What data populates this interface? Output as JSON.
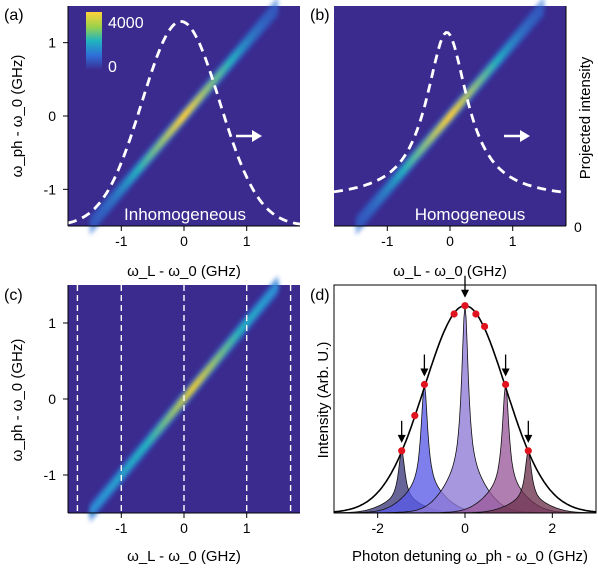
{
  "chart_data": [
    {
      "panel": "(a)",
      "type": "heatmap",
      "xlabel": "ω_L - ω_0 (GHz)",
      "ylabel": "ω_ph - ω_0 (GHz)",
      "xlim": [
        -1.85,
        1.85
      ],
      "ylim": [
        -1.5,
        1.5
      ],
      "xticks": [
        -1,
        0,
        1
      ],
      "yticks": [
        -1,
        0,
        1
      ],
      "diagonal_width_ghz": 0.13,
      "colorbar": {
        "min": 0,
        "max": 4000,
        "labels": [
          "4000",
          "0"
        ]
      },
      "annotation": "Inhomogeneous",
      "projection": {
        "style": "dashed-white",
        "center_ghz": -0.05,
        "sigma_ghz": 0.62,
        "peak_fraction": 0.93
      }
    },
    {
      "panel": "(b)",
      "type": "heatmap",
      "xlabel": "ω_L - ω_0 (GHz)",
      "ylabel_right": "Projected intensity",
      "right_tick_labels": [
        "0"
      ],
      "xlim": [
        -1.85,
        1.85
      ],
      "ylim": [
        -1.5,
        1.5
      ],
      "xticks": [
        -1,
        0,
        1
      ],
      "diagonal_width_ghz": 0.13,
      "annotation": "Homogeneous",
      "projection": {
        "style": "dashed-white",
        "center_ghz": -0.05,
        "gamma_ghz": 0.4,
        "peak_fraction": 0.88,
        "baseline_fraction": 0.12
      }
    },
    {
      "panel": "(c)",
      "type": "heatmap",
      "xlabel": "ω_L - ω_0 (GHz)",
      "ylabel": "ω_ph - ω_0 (GHz)",
      "xlim": [
        -1.85,
        1.85
      ],
      "ylim": [
        -1.5,
        1.5
      ],
      "xticks": [
        -1,
        0,
        1
      ],
      "yticks": [
        -1,
        0,
        1
      ],
      "dashed_lines_x": [
        -1.7,
        -1.0,
        0.0,
        1.0,
        1.7
      ]
    },
    {
      "panel": "(d)",
      "type": "area",
      "xlabel": "Photon detuning ω_ph - ω_0 (GHz)",
      "ylabel": "Intensity (Arb. U.)",
      "xlim": [
        -3.0,
        3.0
      ],
      "xticks": [
        -2,
        0,
        2
      ],
      "ylim": [
        0,
        1.1
      ],
      "envelope": {
        "center": 0.0,
        "sigma": 0.93,
        "amp": 1.0
      },
      "series": [
        {
          "center": -1.45,
          "amp": 0.3,
          "color": "#3c3a7a"
        },
        {
          "center": -0.93,
          "amp": 0.62,
          "color": "#5a5ae8"
        },
        {
          "center": 0.0,
          "amp": 1.0,
          "color": "#8e7ad6"
        },
        {
          "center": 0.93,
          "amp": 0.62,
          "color": "#9a5a9a"
        },
        {
          "center": 1.45,
          "amp": 0.3,
          "color": "#6e3350"
        }
      ],
      "arrows_x": [
        -1.45,
        -0.93,
        0.0,
        0.93,
        1.45
      ],
      "red_points": [
        {
          "x": -1.45,
          "y": 0.3
        },
        {
          "x": -1.15,
          "y": 0.47
        },
        {
          "x": -0.93,
          "y": 0.62
        },
        {
          "x": -0.25,
          "y": 0.96
        },
        {
          "x": 0.0,
          "y": 1.0
        },
        {
          "x": 0.25,
          "y": 0.96
        },
        {
          "x": 0.45,
          "y": 0.9
        },
        {
          "x": 0.93,
          "y": 0.62
        },
        {
          "x": 1.45,
          "y": 0.3
        }
      ]
    }
  ]
}
